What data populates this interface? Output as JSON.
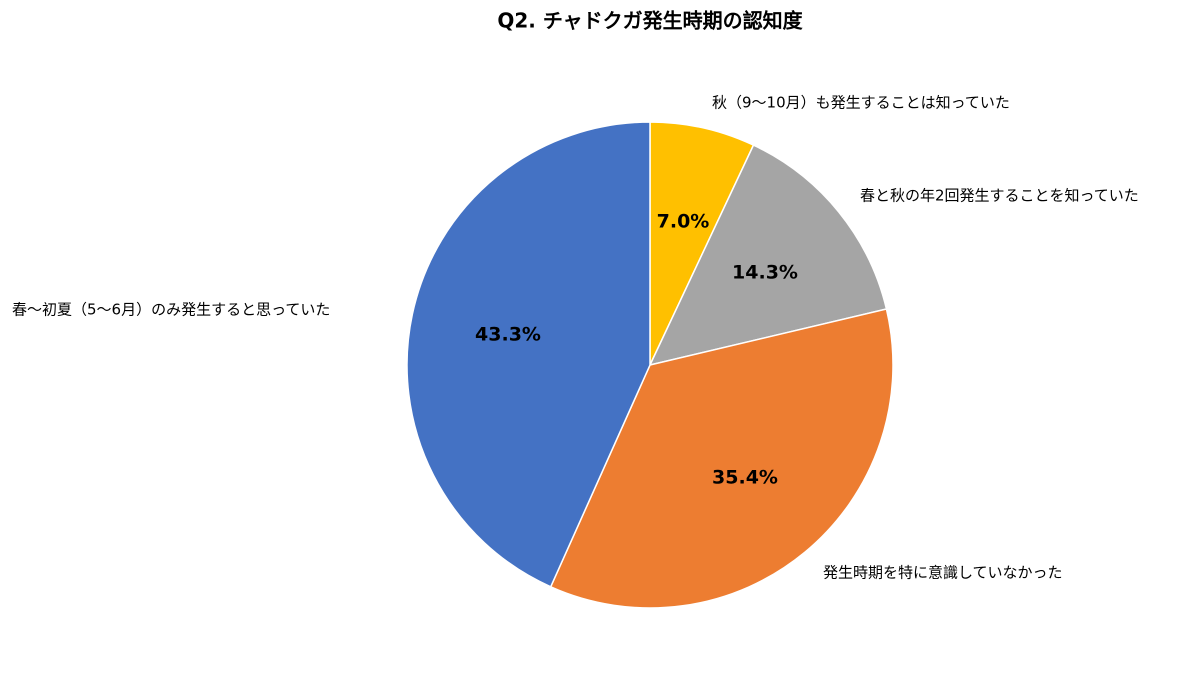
{
  "chart_data": {
    "type": "pie",
    "title": "Q2. チャドクガ発生時期の認知度",
    "categories": [
      "秋（9〜10月）も発生することは知っていた",
      "春と秋の年2回発生することを知っていた",
      "発生時期を特に意識していなかった",
      "春〜初夏（5〜6月）のみ発生すると思っていた"
    ],
    "values": [
      7.0,
      14.3,
      35.4,
      43.3
    ],
    "value_labels": [
      "7.0%",
      "14.3%",
      "35.4%",
      "43.3%"
    ],
    "colors": [
      "#ffc000",
      "#a5a5a5",
      "#ed7d31",
      "#4472c4"
    ]
  }
}
